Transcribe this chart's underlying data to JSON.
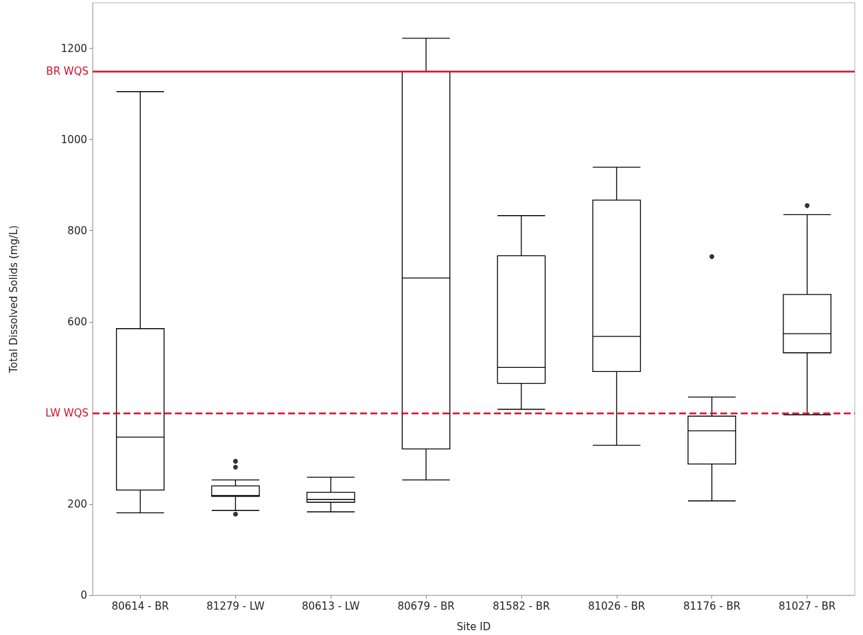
{
  "chart_data": {
    "type": "box",
    "xlabel": "Site ID",
    "ylabel": "Total Dissolved Solids (mg/L)",
    "color": "#000000",
    "categories": [
      "80614 - BR",
      "81279 - LW",
      "80613 - LW",
      "80679 - BR",
      "81582 - BR",
      "81026 - BR",
      "81176 - BR",
      "81027 - BR"
    ],
    "boxes": [
      {
        "low": 181,
        "q1": 231,
        "median": 347,
        "q3": 585,
        "high": 1105
      },
      {
        "low": 186,
        "q1": 217,
        "median": 219,
        "q3": 240,
        "high": 253,
        "outliers": [
          294,
          281,
          178
        ]
      },
      {
        "low": 183,
        "q1": 204,
        "median": 210,
        "q3": 226,
        "high": 259
      },
      {
        "low": 253,
        "q1": 321,
        "median": 696,
        "q3": 1149,
        "high": 1222
      },
      {
        "low": 408,
        "q1": 465,
        "median": 500,
        "q3": 745,
        "high": 833
      },
      {
        "low": 329,
        "q1": 491,
        "median": 568,
        "q3": 867,
        "high": 939
      },
      {
        "low": 207,
        "q1": 288,
        "median": 361,
        "q3": 393,
        "high": 435,
        "outliers": [
          743
        ]
      },
      {
        "low": 396,
        "q1": 532,
        "median": 574,
        "q3": 660,
        "high": 835,
        "outliers": [
          855
        ]
      }
    ],
    "ylim": [
      0,
      1300
    ],
    "yticks": [
      0,
      200,
      600,
      800,
      1000,
      1200
    ],
    "ref_lines": [
      {
        "axis": "y",
        "value": 1150,
        "label": "BR WQS",
        "color": "#d0102a",
        "line_style": "solid"
      },
      {
        "axis": "y",
        "value": 400,
        "label": "LW WQS",
        "color": "#d0102a",
        "line_style": "dashed"
      }
    ]
  }
}
